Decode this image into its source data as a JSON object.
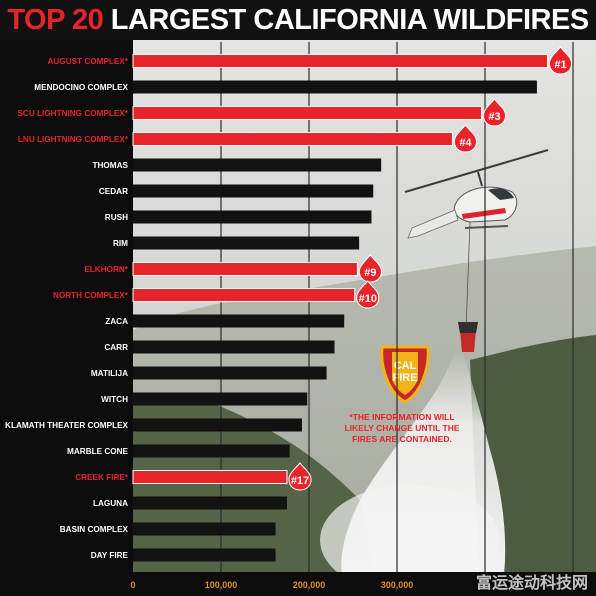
{
  "title": {
    "accent": "TOP 20",
    "rest": " LARGEST CALIFORNIA WILDFIRES"
  },
  "colors": {
    "highlight": "#e8242b",
    "bar": "#121212",
    "label_white": "#ffffff",
    "label_red": "#e8242b",
    "axis_text": "#e0901e"
  },
  "note": [
    "*THE INFORMATION WILL",
    "LIKELY CHANGE UNTIL THE",
    "FIRES ARE CONTAINED."
  ],
  "logo": {
    "line1": "CAL",
    "line2": "FIRE"
  },
  "watermark": "富运途动科技网",
  "chart_data": {
    "type": "bar",
    "orientation": "horizontal",
    "title": "TOP 20 LARGEST CALIFORNIA WILDFIRES",
    "xlim": [
      0,
      500000
    ],
    "x_ticks": [
      0,
      100000,
      200000,
      300000
    ],
    "x_tick_labels": [
      "0",
      "100,000",
      "200,000",
      "300,000"
    ],
    "grid": true,
    "categories": [
      "AUGUST COMPLEX*",
      "MENDOCINO COMPLEX",
      "SCU LIGHTNING COMPLEX*",
      "LNU LIGHTNING COMPLEX*",
      "THOMAS",
      "CEDAR",
      "RUSH",
      "RIM",
      "ELKHORN*",
      "NORTH COMPLEX*",
      "ZACA",
      "CARR",
      "MATILIJA",
      "WITCH",
      "KLAMATH THEATER COMPLEX",
      "MARBLE CONE",
      "CREEK FIRE*",
      "LAGUNA",
      "BASIN COMPLEX",
      "DAY FIRE"
    ],
    "values": [
      471000,
      459000,
      396000,
      363000,
      282000,
      273000,
      271000,
      257000,
      255000,
      252000,
      240000,
      229000,
      220000,
      198000,
      192000,
      178000,
      175000,
      175000,
      162000,
      162000
    ],
    "highlighted": [
      true,
      false,
      true,
      true,
      false,
      false,
      false,
      false,
      true,
      true,
      false,
      false,
      false,
      false,
      false,
      false,
      true,
      false,
      false,
      false
    ],
    "rank_badges": [
      {
        "index": 0,
        "label": "1"
      },
      {
        "index": 2,
        "label": "3"
      },
      {
        "index": 3,
        "label": "4"
      },
      {
        "index": 8,
        "label": "9"
      },
      {
        "index": 9,
        "label": "10"
      },
      {
        "index": 16,
        "label": "17"
      }
    ]
  }
}
